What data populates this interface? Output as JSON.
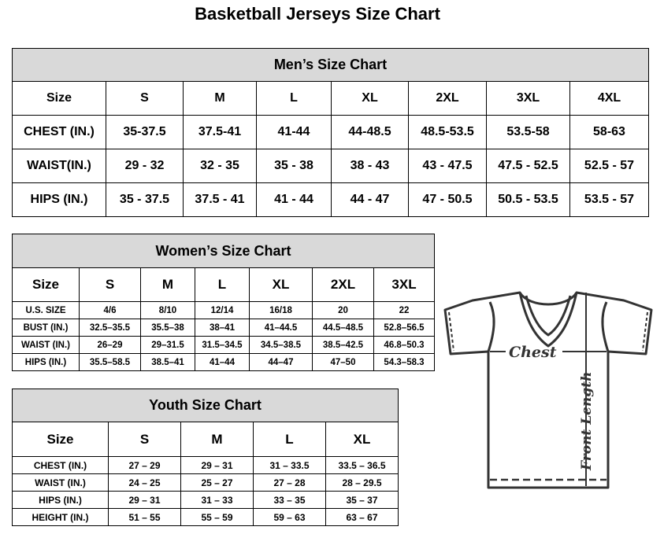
{
  "title": "Basketball Jerseys Size Chart",
  "men": {
    "heading": "Men’s Size Chart",
    "header": [
      "Size",
      "S",
      "M",
      "L",
      "XL",
      "2XL",
      "3XL",
      "4XL"
    ],
    "rows": [
      [
        "CHEST (IN.)",
        "35-37.5",
        "37.5-41",
        "41-44",
        "44-48.5",
        "48.5-53.5",
        "53.5-58",
        "58-63"
      ],
      [
        "WAIST(IN.)",
        "29 - 32",
        "32 - 35",
        "35 - 38",
        "38 - 43",
        "43 - 47.5",
        "47.5 - 52.5",
        "52.5 - 57"
      ],
      [
        "HIPS (IN.)",
        "35 - 37.5",
        "37.5 - 41",
        "41 - 44",
        "44 - 47",
        "47 - 50.5",
        "50.5 - 53.5",
        "53.5 - 57"
      ]
    ]
  },
  "women": {
    "heading": "Women’s Size Chart",
    "header": [
      "Size",
      "S",
      "M",
      "L",
      "XL",
      "2XL",
      "3XL"
    ],
    "rows": [
      [
        "U.S.  SIZE",
        "4/6",
        "8/10",
        "12/14",
        "16/18",
        "20",
        "22"
      ],
      [
        "BUST  (IN.)",
        "32.5–35.5",
        "35.5–38",
        "38–41",
        "41–44.5",
        "44.5–48.5",
        "52.8–56.5"
      ],
      [
        "WAIST  (IN.)",
        "26–29",
        "29–31.5",
        "31.5–34.5",
        "34.5–38.5",
        "38.5–42.5",
        "46.8–50.3"
      ],
      [
        "HIPS  (IN.)",
        "35.5–58.5",
        "38.5–41",
        "41–44",
        "44–47",
        "47–50",
        "54.3–58.3"
      ]
    ]
  },
  "youth": {
    "heading": "Youth Size Chart",
    "header": [
      "Size",
      "S",
      "M",
      "L",
      "XL"
    ],
    "rows": [
      [
        "CHEST  (IN.)",
        "27  –  29",
        "29  –  31",
        "31  –  33.5",
        "33.5  –  36.5"
      ],
      [
        "WAIST  (IN.)",
        "24  –  25",
        "25  –  27",
        "27  –  28",
        "28  –  29.5"
      ],
      [
        "HIPS  (IN.)",
        "29  –  31",
        "31  –  33",
        "33  –  35",
        "35  –  37"
      ],
      [
        "HEIGHT  (IN.)",
        "51  –  55",
        "55  –  59",
        "59  –  63",
        "63  –  67"
      ]
    ]
  },
  "diagram": {
    "chest_label": "Chest",
    "length_label": "Front Length",
    "icon": "t-shirt-icon"
  }
}
